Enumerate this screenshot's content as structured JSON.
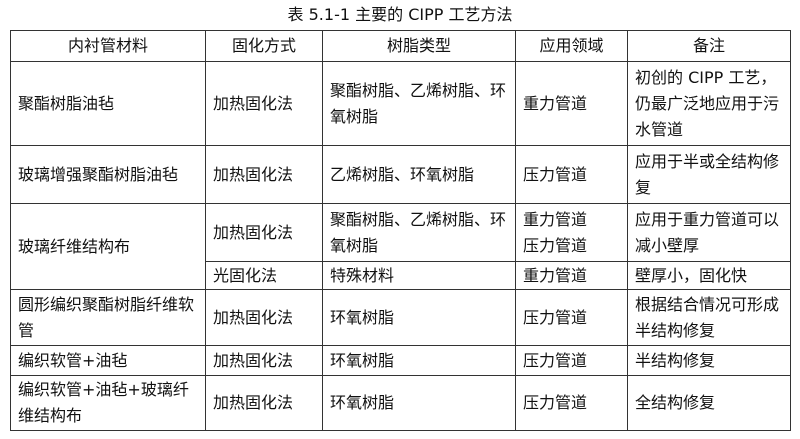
{
  "title": "表 5.1-1  主要的 CIPP  工艺方法",
  "headers": [
    "内衬管材料",
    "固化方式",
    "树脂类型",
    "应用领域",
    "备注"
  ],
  "rows": [
    [
      "聚酯树脂油毡",
      "加热固化法",
      "聚酯树脂、乙烯树脂、环氧树脂",
      "重力管道",
      "初创的 CIPP 工艺，仍最广泛地应用于污水管道"
    ],
    [
      "玻璃增强聚酯树脂油毡",
      "加热固化法",
      "乙烯树脂、环氧树脂",
      "压力管道",
      "应用于半或全结构修复"
    ],
    [
      "玻璃纤维结构布",
      "加热固化法",
      "聚酯树脂、乙烯树脂、环氧树脂",
      "重力管道 压力管道",
      "应用于重力管道可以减小壁厚"
    ],
    [
      "",
      "光固化法",
      "特殊材料",
      "重力管道",
      "壁厚小，固化快"
    ],
    [
      "圆形编织聚酯树脂纤维软管",
      "加热固化法",
      "环氧树脂",
      "压力管道",
      "根据结合情况可形成半结构修复"
    ],
    [
      "编织软管+油毡",
      "加热固化法",
      "环氧树脂",
      "压力管道",
      "半结构修复"
    ],
    [
      "编织软管+油毡+玻璃纤维结构布",
      "加热固化法",
      "环氧树脂",
      "压力管道",
      "全结构修复"
    ]
  ]
}
